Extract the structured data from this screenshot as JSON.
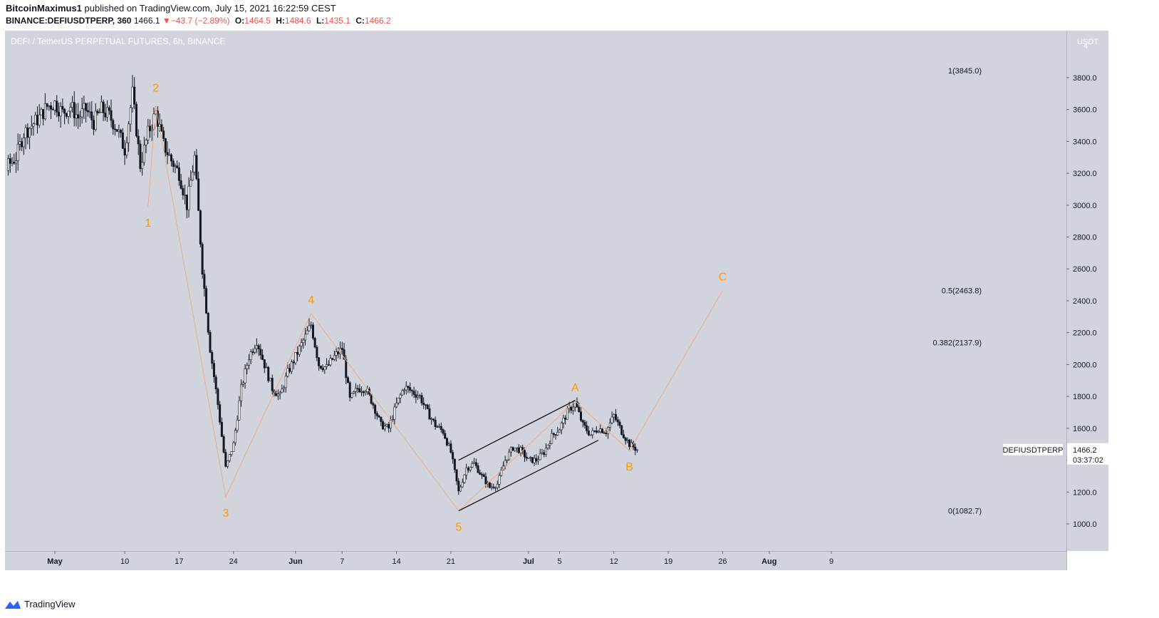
{
  "header": {
    "author": "BitcoinMaximus1",
    "published": "published on TradingView.com, July 15, 2021 16:22:59 CEST",
    "symbol_interval": "BINANCE:DEFIUSDTPERP, 360",
    "last": "1466.1",
    "change": "−43.7 (−2.89%)",
    "o_label": "O:",
    "o": "1464.5",
    "h_label": "H:",
    "h": "1484.6",
    "l_label": "L:",
    "l": "1435.1",
    "c_label": "C:",
    "c": "1466.2"
  },
  "brand": {
    "name": "TradingView"
  },
  "colors": {
    "plot_bg": "#d1d4dc",
    "candle": "#131722",
    "wave_label": "#ff9800",
    "wave_line": "#e8ad8f",
    "down": "#ef5350"
  },
  "icons": [
    "tradingview-logo-icon",
    "down-triangle-icon"
  ],
  "chart_data": {
    "type": "candlestick",
    "title": "DEFI / TetherUS PERPETUAL FUTURES, 6h, BINANCE",
    "currency": "USDT",
    "y_unit_label": "4",
    "y_ticks": [
      1000,
      1200,
      1400,
      1600,
      1800,
      2000,
      2200,
      2400,
      2600,
      2800,
      3000,
      3200,
      3400,
      3600,
      3800
    ],
    "y_tick_labels": [
      "1000.0",
      "1200.0",
      "1400.0",
      "1600.0",
      "1800.0",
      "2000.0",
      "2200.0",
      "2400.0",
      "2600.0",
      "2800.0",
      "3000.0",
      "3200.0",
      "3400.0",
      "3600.0",
      "3800.0"
    ],
    "x_ticks": [
      {
        "label": "May",
        "date": "2021-05-01"
      },
      {
        "label": "10",
        "date": "2021-05-10"
      },
      {
        "label": "17",
        "date": "2021-05-17"
      },
      {
        "label": "24",
        "date": "2021-05-24"
      },
      {
        "label": "Jun",
        "date": "2021-06-01"
      },
      {
        "label": "7",
        "date": "2021-06-07"
      },
      {
        "label": "14",
        "date": "2021-06-14"
      },
      {
        "label": "21",
        "date": "2021-06-21"
      },
      {
        "label": "Jul",
        "date": "2021-07-01"
      },
      {
        "label": "5",
        "date": "2021-07-05"
      },
      {
        "label": "12",
        "date": "2021-07-12"
      },
      {
        "label": "19",
        "date": "2021-07-19"
      },
      {
        "label": "26",
        "date": "2021-07-26"
      },
      {
        "label": "Aug",
        "date": "2021-08-01"
      },
      {
        "label": "9",
        "date": "2021-08-09"
      }
    ],
    "price_path": [
      [
        "2021-04-20",
        2700
      ],
      [
        "2021-04-21",
        2950
      ],
      [
        "2021-04-22",
        3100
      ],
      [
        "2021-04-23",
        3200
      ],
      [
        "2021-04-24",
        3150
      ],
      [
        "2021-04-25",
        3250
      ],
      [
        "2021-04-26",
        3300
      ],
      [
        "2021-04-27",
        3450
      ],
      [
        "2021-04-28",
        3500
      ],
      [
        "2021-04-29",
        3550
      ],
      [
        "2021-04-30",
        3620
      ],
      [
        "2021-05-01",
        3640
      ],
      [
        "2021-05-02",
        3580
      ],
      [
        "2021-05-03",
        3620
      ],
      [
        "2021-05-04",
        3550
      ],
      [
        "2021-05-05",
        3600
      ],
      [
        "2021-05-06",
        3520
      ],
      [
        "2021-05-07",
        3600
      ],
      [
        "2021-05-08",
        3560
      ],
      [
        "2021-05-09",
        3480
      ],
      [
        "2021-05-10",
        3350
      ],
      [
        "2021-05-11",
        3700
      ],
      [
        "2021-05-12",
        3250
      ],
      [
        "2021-05-13",
        3450
      ],
      [
        "2021-05-14",
        3580
      ],
      [
        "2021-05-15",
        3380
      ],
      [
        "2021-05-16",
        3280
      ],
      [
        "2021-05-17",
        3200
      ],
      [
        "2021-05-18",
        3000
      ],
      [
        "2021-05-19",
        3300
      ],
      [
        "2021-05-20",
        2600
      ],
      [
        "2021-05-21",
        2100
      ],
      [
        "2021-05-22",
        1750
      ],
      [
        "2021-05-23",
        1350
      ],
      [
        "2021-05-24",
        1500
      ],
      [
        "2021-05-25",
        1850
      ],
      [
        "2021-05-26",
        2050
      ],
      [
        "2021-05-27",
        2150
      ],
      [
        "2021-05-28",
        2000
      ],
      [
        "2021-05-29",
        1850
      ],
      [
        "2021-05-30",
        1800
      ],
      [
        "2021-05-31",
        1950
      ],
      [
        "2021-06-01",
        2050
      ],
      [
        "2021-06-02",
        2150
      ],
      [
        "2021-06-03",
        2250
      ],
      [
        "2021-06-04",
        2000
      ],
      [
        "2021-06-05",
        1980
      ],
      [
        "2021-06-06",
        2050
      ],
      [
        "2021-06-07",
        2100
      ],
      [
        "2021-06-08",
        1780
      ],
      [
        "2021-06-09",
        1850
      ],
      [
        "2021-06-10",
        1850
      ],
      [
        "2021-06-11",
        1750
      ],
      [
        "2021-06-12",
        1620
      ],
      [
        "2021-06-13",
        1600
      ],
      [
        "2021-06-14",
        1750
      ],
      [
        "2021-06-15",
        1860
      ],
      [
        "2021-06-16",
        1830
      ],
      [
        "2021-06-17",
        1800
      ],
      [
        "2021-06-18",
        1700
      ],
      [
        "2021-06-19",
        1620
      ],
      [
        "2021-06-20",
        1580
      ],
      [
        "2021-06-21",
        1450
      ],
      [
        "2021-06-22",
        1200
      ],
      [
        "2021-06-23",
        1350
      ],
      [
        "2021-06-24",
        1380
      ],
      [
        "2021-06-25",
        1300
      ],
      [
        "2021-06-26",
        1230
      ],
      [
        "2021-06-27",
        1250
      ],
      [
        "2021-06-28",
        1400
      ],
      [
        "2021-06-29",
        1480
      ],
      [
        "2021-06-30",
        1460
      ],
      [
        "2021-07-01",
        1400
      ],
      [
        "2021-07-02",
        1400
      ],
      [
        "2021-07-03",
        1450
      ],
      [
        "2021-07-04",
        1550
      ],
      [
        "2021-07-05",
        1600
      ],
      [
        "2021-07-06",
        1700
      ],
      [
        "2021-07-07",
        1760
      ],
      [
        "2021-07-08",
        1620
      ],
      [
        "2021-07-09",
        1560
      ],
      [
        "2021-07-10",
        1600
      ],
      [
        "2021-07-11",
        1580
      ],
      [
        "2021-07-12",
        1680
      ],
      [
        "2021-07-13",
        1580
      ],
      [
        "2021-07-14",
        1500
      ],
      [
        "2021-07-15",
        1466
      ]
    ],
    "wave_labels": [
      {
        "label": "1",
        "date": "2021-05-13",
        "price": 2990,
        "pos": "below"
      },
      {
        "label": "2",
        "date": "2021-05-14",
        "price": 3650,
        "pos": "above"
      },
      {
        "label": "3",
        "date": "2021-05-23",
        "price": 1170,
        "pos": "below"
      },
      {
        "label": "4",
        "date": "2021-06-03",
        "price": 2320,
        "pos": "above"
      },
      {
        "label": "5",
        "date": "2021-06-22",
        "price": 1082.7,
        "pos": "below"
      },
      {
        "label": "A",
        "date": "2021-07-07",
        "price": 1770,
        "pos": "above"
      },
      {
        "label": "B",
        "date": "2021-07-14",
        "price": 1460,
        "pos": "below"
      },
      {
        "label": "C",
        "date": "2021-07-26",
        "price": 2463.8,
        "pos": "above"
      }
    ],
    "wave_path": [
      [
        "2021-05-13",
        2990
      ],
      [
        "2021-05-14",
        3620
      ],
      [
        "2021-05-23",
        1170
      ],
      [
        "2021-06-03",
        2320
      ],
      [
        "2021-06-22",
        1082.7
      ],
      [
        "2021-07-07",
        1770
      ],
      [
        "2021-07-14",
        1460
      ],
      [
        "2021-07-26",
        2463.8
      ]
    ],
    "channel": {
      "upper": [
        [
          "2021-06-22",
          1400
        ],
        [
          "2021-07-07",
          1775
        ]
      ],
      "lower": [
        [
          "2021-06-22",
          1082
        ],
        [
          "2021-07-10",
          1525
        ]
      ]
    },
    "fib_levels": [
      {
        "label": "1(3845.0)",
        "price": 3845.0
      },
      {
        "label": "0.5(2463.8)",
        "price": 2463.8
      },
      {
        "label": "0.382(2137.9)",
        "price": 2137.9
      },
      {
        "label": "0(1082.7)",
        "price": 1082.7
      }
    ],
    "price_tag": {
      "symbol": "DEFIUSDTPERP",
      "value": "1466.2",
      "countdown": "03:37:02",
      "price": 1466.2
    },
    "grid": false,
    "ylim": [
      710,
      4070
    ],
    "xlim": [
      "2021-04-20",
      "2021-08-15"
    ]
  }
}
